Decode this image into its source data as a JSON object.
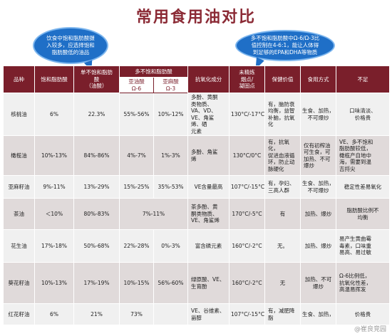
{
  "title": "常用食用油对比",
  "callout_left": [
    "饮食中饱和脂肪酸摄",
    "入较多，应选择饱和",
    "脂肪酸低的油品"
  ],
  "callout_right": [
    "多不饱和脂肪酸中Ω-6/Ω-3比",
    "值控制在4-6:1，能让人体得",
    "到足够的EPA和DHA等物质"
  ],
  "headers": {
    "variety": "品种",
    "saturated": "饱和脂肪酸",
    "mono": [
      "单不饱和脂肪",
      "酸",
      "（油酸）"
    ],
    "poly": "多不饱和脂肪酸",
    "linoleic": [
      "亚油酸",
      "Ω-6"
    ],
    "linolenic": [
      "亚麻酸",
      "Ω-3"
    ],
    "antioxidant": "抗氧化成分",
    "smoke": [
      "未精炼",
      "烟点/",
      "凝固点"
    ],
    "health": "保健价值",
    "cooking": "食用方式",
    "shortcoming": "不足"
  },
  "rows": [
    {
      "name": "核桃油",
      "sat": "6%",
      "mono": "22.3%",
      "o6": "55%-56%",
      "o3": "10%-12%",
      "anti": [
        "多酚、黄酮",
        "类物质、",
        "VA、VD、",
        "VE、角鲨",
        "烯、硒",
        "元素"
      ],
      "smoke": "130°C/-17°C",
      "health": [
        "有，脑防衰",
        "均衡，益智",
        "补脑，抗氧",
        "化"
      ],
      "cook": [
        "生食、加热，",
        "不可爆炒"
      ],
      "short": [
        "口味清淡、",
        "价格贵"
      ]
    },
    {
      "name": "橄榄油",
      "sat": "10%-13%",
      "mono": "84%-86%",
      "o6": "4%-7%",
      "o3": "1%-3%",
      "anti": [
        "多酚、角鲨",
        "烯"
      ],
      "smoke": "130°C/0°C",
      "health": [
        "有，抗氧化，",
        "促进血液循",
        "环，防止动",
        "脉硬化"
      ],
      "cook": [
        "仅有初榨油",
        "可生食，可",
        "加热、不可",
        "爆炒"
      ],
      "short": [
        "VE、多不饱和",
        "脂肪酸较低，",
        "橄榄产自地中",
        "海，需要到温",
        "吉捋尖"
      ]
    },
    {
      "name": "亚麻籽油",
      "sat": "9%-11%",
      "mono": "13%-29%",
      "o6": "15%-25%",
      "o3": "35%-53%",
      "anti": [
        "VE含量最高"
      ],
      "smoke": "107°C/-15°C",
      "health": [
        "有，孕妇、",
        "三高人群"
      ],
      "cook": [
        "生食、加热，",
        "不可爆炒"
      ],
      "short": [
        "稳定性差易氧化"
      ]
    },
    {
      "name": "茶油",
      "sat": "＜10%",
      "mono": "80%-83%",
      "poly_merged": "7%-11%",
      "anti": [
        "茶多酚、黄",
        "酮类物质、",
        "VE、角鲨烯"
      ],
      "smoke": "170°C/-5°C",
      "health": [
        "有"
      ],
      "cook": [
        "加热、爆炒"
      ],
      "short": [
        "脂肪酸比例不",
        "均衡"
      ]
    },
    {
      "name": "花生油",
      "sat": "17%-18%",
      "mono": "50%-68%",
      "o6": "22%-28%",
      "o3": "0%-3%",
      "anti": [
        "富含磷元素"
      ],
      "smoke": "160°C/-2°C",
      "health": [
        "无。"
      ],
      "cook": [
        "加热、爆炒"
      ],
      "short": [
        "易产生黄曲霉",
        "毒素，口味重",
        "易高、易过敏"
      ]
    },
    {
      "name": "葵花籽油",
      "sat": "10%-13%",
      "mono": "17%-19%",
      "o6": "10%-15%",
      "o3": "56%-60%",
      "anti": [
        "绿原酸、VE、",
        "生育酚"
      ],
      "smoke": "160°C/-2°C",
      "health": [
        "无"
      ],
      "cook": [
        "加热、不可",
        "爆炒"
      ],
      "short": [
        "Ω-6比例低，",
        "抗氧化性差，",
        "高温易挥发"
      ]
    },
    {
      "name": "红花籽油",
      "sat": "6%",
      "mono": "21%",
      "o6": "73%",
      "o3": "",
      "anti": [
        "VE、谷维素、",
        "甾醇"
      ],
      "smoke": "107°C/-15°C",
      "health": [
        "有，减肥降",
        "脂"
      ],
      "cook": [
        "生食、加热，"
      ],
      "short": [
        "价格贵"
      ]
    }
  ],
  "watermark": "@崔良竞园"
}
